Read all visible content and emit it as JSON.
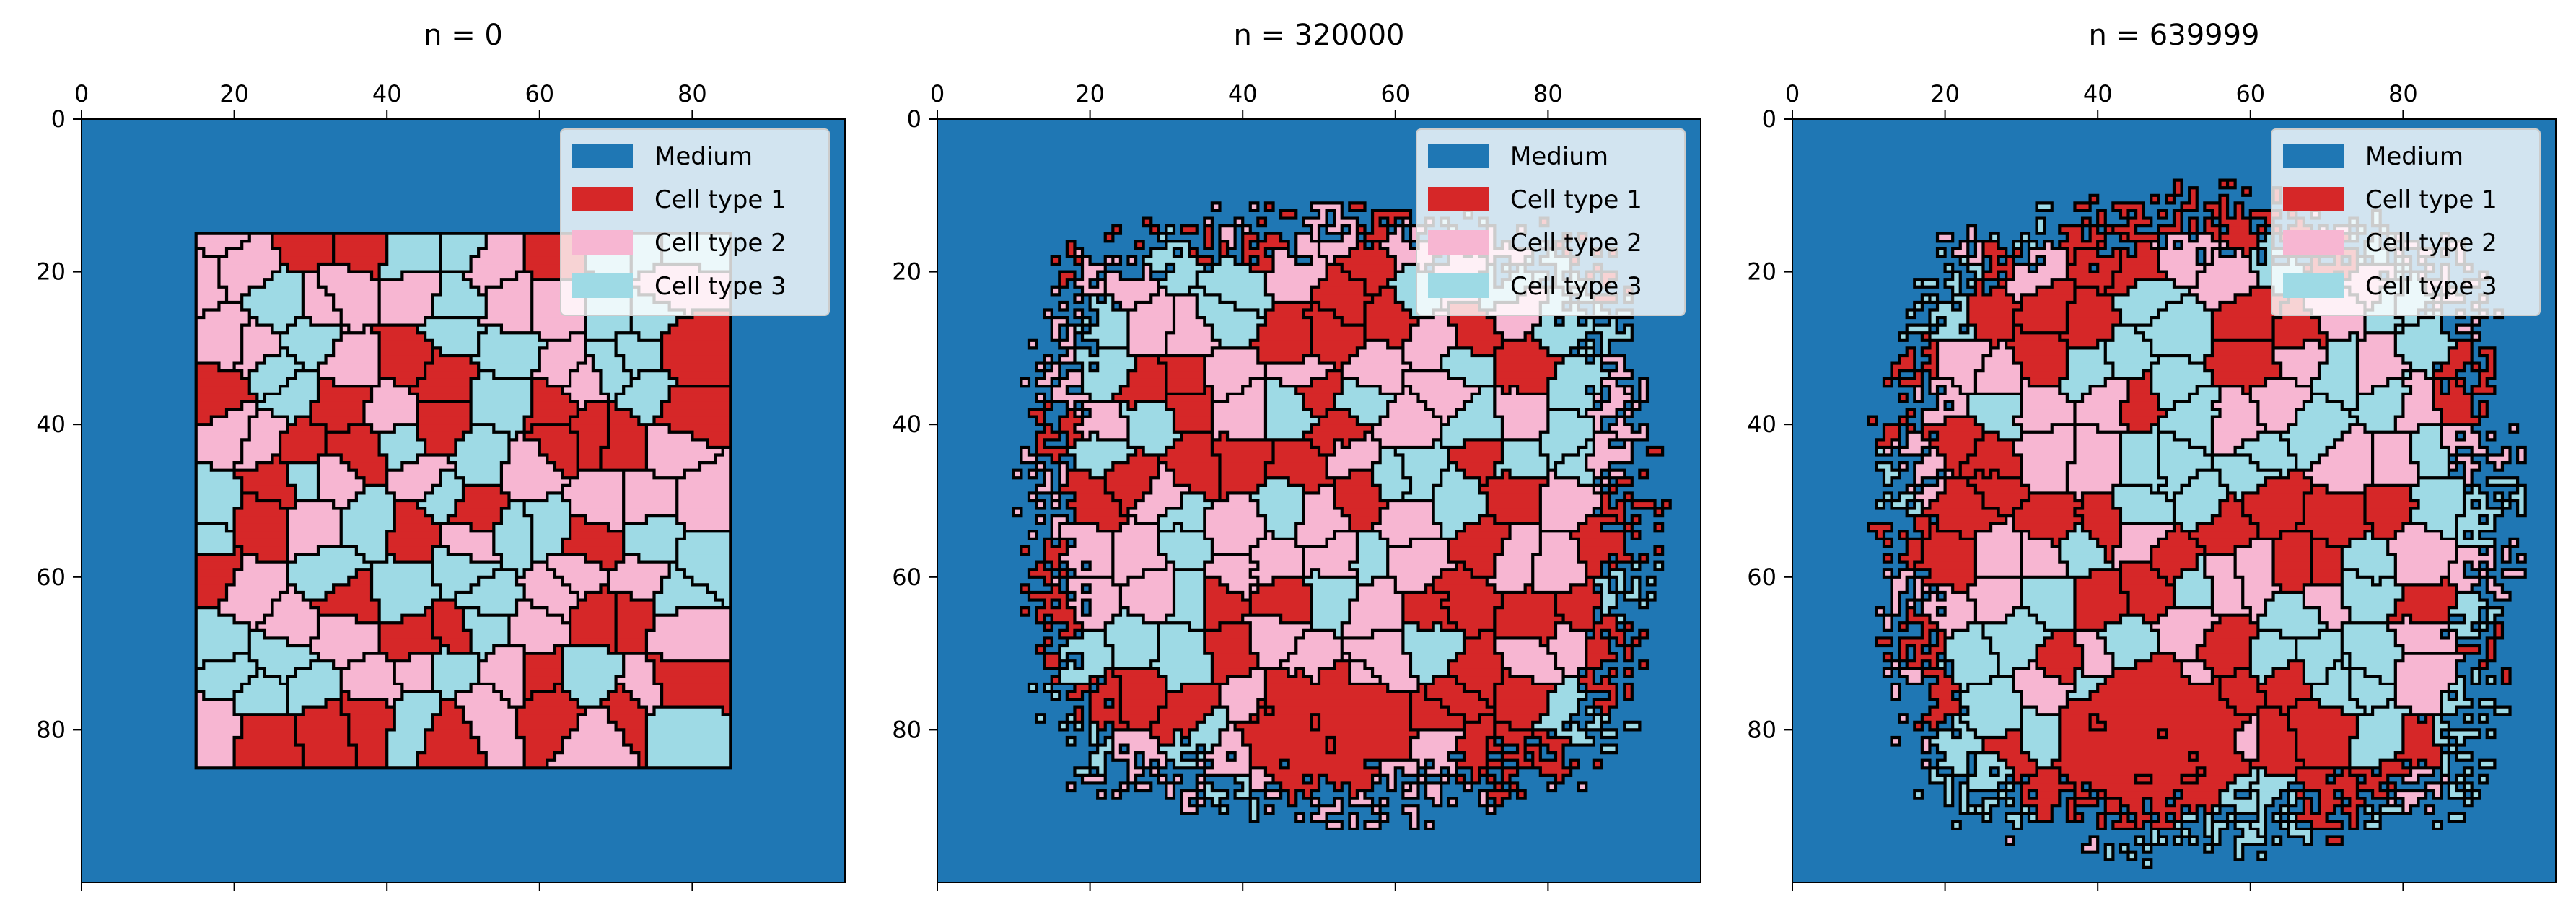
{
  "chart_data": [
    {
      "type": "heatmap",
      "title": "n = 0",
      "grid_size": 100,
      "xticks": [
        0,
        20,
        40,
        60,
        80
      ],
      "yticks": [
        0,
        20,
        40,
        60,
        80
      ],
      "xlim": [
        0,
        100
      ],
      "ylim": [
        0,
        100
      ],
      "legend_position": "top-right",
      "legend": [
        {
          "label": "Medium",
          "color": "#1f77b4"
        },
        {
          "label": "Cell type 1",
          "color": "#d62728"
        },
        {
          "label": "Cell type 2",
          "color": "#f7b6d2"
        },
        {
          "label": "Cell type 3",
          "color": "#9edae5"
        }
      ],
      "tissue_extent": {
        "x": [
          15,
          85
        ],
        "y": [
          15,
          85
        ]
      },
      "pattern": "square",
      "seed": 3
    },
    {
      "type": "heatmap",
      "title": "n = 320000",
      "grid_size": 100,
      "xticks": [
        0,
        20,
        40,
        60,
        80
      ],
      "yticks": [
        0,
        20,
        40,
        60,
        80
      ],
      "xlim": [
        0,
        100
      ],
      "ylim": [
        0,
        100
      ],
      "legend_position": "top-right",
      "legend": [
        {
          "label": "Medium",
          "color": "#1f77b4"
        },
        {
          "label": "Cell type 1",
          "color": "#d62728"
        },
        {
          "label": "Cell type 2",
          "color": "#f7b6d2"
        },
        {
          "label": "Cell type 3",
          "color": "#9edae5"
        }
      ],
      "tissue_extent": {
        "x": [
          12,
          92
        ],
        "y": [
          12,
          90
        ]
      },
      "pattern": "irregular",
      "seed": 11
    },
    {
      "type": "heatmap",
      "title": "n = 639999",
      "grid_size": 100,
      "xticks": [
        0,
        20,
        40,
        60,
        80
      ],
      "yticks": [
        0,
        20,
        40,
        60,
        80
      ],
      "xlim": [
        0,
        100
      ],
      "ylim": [
        0,
        100
      ],
      "legend_position": "top-right",
      "legend": [
        {
          "label": "Medium",
          "color": "#1f77b4"
        },
        {
          "label": "Cell type 1",
          "color": "#d62728"
        },
        {
          "label": "Cell type 2",
          "color": "#f7b6d2"
        },
        {
          "label": "Cell type 3",
          "color": "#9edae5"
        }
      ],
      "tissue_extent": {
        "x": [
          12,
          93
        ],
        "y": [
          11,
          94
        ]
      },
      "pattern": "irregular-sorted",
      "seed": 29
    }
  ]
}
